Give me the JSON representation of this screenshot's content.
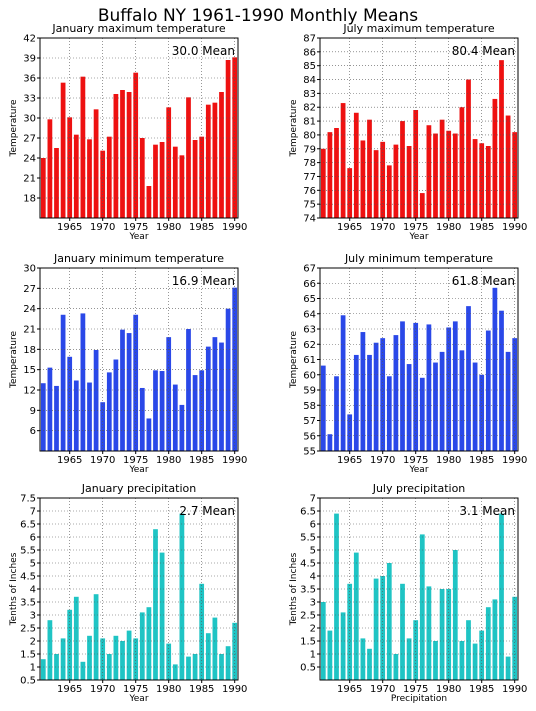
{
  "title": "Buffalo NY  1961-1990 Monthly Means",
  "colors": {
    "red": "#ee1111",
    "blue": "#2a48e8",
    "cyan": "#1fc4c4",
    "grid": "#555555"
  },
  "chart_data": [
    {
      "type": "bar",
      "title": "January maximum temperature",
      "mean_label": "30.0 Mean",
      "xlabel": "Year",
      "ylabel": "Temperature",
      "color": "red",
      "x": [
        1961,
        1962,
        1963,
        1964,
        1965,
        1966,
        1967,
        1968,
        1969,
        1970,
        1971,
        1972,
        1973,
        1974,
        1975,
        1976,
        1977,
        1978,
        1979,
        1980,
        1981,
        1982,
        1983,
        1984,
        1985,
        1986,
        1987,
        1988,
        1989,
        1990
      ],
      "values": [
        24.0,
        29.8,
        25.5,
        35.3,
        30.1,
        27.5,
        36.2,
        26.8,
        31.3,
        25.1,
        27.2,
        33.6,
        34.2,
        33.9,
        36.8,
        27.0,
        19.8,
        26.0,
        26.4,
        31.6,
        25.7,
        24.4,
        33.1,
        26.7,
        27.2,
        32.0,
        32.3,
        33.9,
        38.7,
        39.1
      ],
      "ylim": [
        15,
        42
      ],
      "yticks": [
        18,
        21,
        24,
        27,
        30,
        33,
        36,
        39,
        42
      ],
      "xticks": [
        1965,
        1970,
        1975,
        1980,
        1985,
        1990
      ]
    },
    {
      "type": "bar",
      "title": "July maximum temperature",
      "mean_label": "80.4 Mean",
      "xlabel": "Year",
      "ylabel": "Temperature",
      "color": "red",
      "x": [
        1961,
        1962,
        1963,
        1964,
        1965,
        1966,
        1967,
        1968,
        1969,
        1970,
        1971,
        1972,
        1973,
        1974,
        1975,
        1976,
        1977,
        1978,
        1979,
        1980,
        1981,
        1982,
        1983,
        1984,
        1985,
        1986,
        1987,
        1988,
        1989,
        1990
      ],
      "values": [
        79.0,
        80.2,
        80.5,
        82.3,
        77.6,
        81.6,
        79.6,
        81.1,
        78.9,
        79.5,
        77.8,
        79.3,
        81.0,
        79.2,
        81.8,
        75.8,
        80.7,
        80.1,
        81.1,
        80.3,
        80.1,
        82.0,
        84.0,
        79.7,
        79.4,
        79.2,
        82.6,
        85.4,
        81.4,
        80.2
      ],
      "ylim": [
        74,
        87
      ],
      "yticks": [
        74,
        75,
        76,
        77,
        78,
        79,
        80,
        81,
        82,
        83,
        84,
        85,
        86,
        87
      ],
      "xticks": [
        1965,
        1970,
        1975,
        1980,
        1985,
        1990
      ]
    },
    {
      "type": "bar",
      "title": "January minimum temperature",
      "mean_label": "16.9 Mean",
      "xlabel": "Year",
      "ylabel": "Temperature",
      "color": "blue",
      "x": [
        1961,
        1962,
        1963,
        1964,
        1965,
        1966,
        1967,
        1968,
        1969,
        1970,
        1971,
        1972,
        1973,
        1974,
        1975,
        1976,
        1977,
        1978,
        1979,
        1980,
        1981,
        1982,
        1983,
        1984,
        1985,
        1986,
        1987,
        1988,
        1989,
        1990
      ],
      "values": [
        13.0,
        15.3,
        12.6,
        23.1,
        16.9,
        13.4,
        23.3,
        13.1,
        17.9,
        10.2,
        14.6,
        16.5,
        20.9,
        20.4,
        23.1,
        12.3,
        7.8,
        14.9,
        14.8,
        19.8,
        12.8,
        9.8,
        21.0,
        14.2,
        14.9,
        18.4,
        19.8,
        19.0,
        24.0,
        27.1
      ],
      "ylim": [
        3,
        30
      ],
      "yticks": [
        6,
        9,
        12,
        15,
        18,
        21,
        24,
        27,
        30
      ],
      "xticks": [
        1965,
        1970,
        1975,
        1980,
        1985,
        1990
      ]
    },
    {
      "type": "bar",
      "title": "July minimum temperature",
      "mean_label": "61.8 Mean",
      "xlabel": "Year",
      "ylabel": "Temperature",
      "color": "blue",
      "x": [
        1961,
        1962,
        1963,
        1964,
        1965,
        1966,
        1967,
        1968,
        1969,
        1970,
        1971,
        1972,
        1973,
        1974,
        1975,
        1976,
        1977,
        1978,
        1979,
        1980,
        1981,
        1982,
        1983,
        1984,
        1985,
        1986,
        1987,
        1988,
        1989,
        1990
      ],
      "values": [
        60.6,
        56.1,
        59.9,
        63.9,
        57.4,
        61.3,
        62.8,
        61.3,
        62.1,
        62.4,
        59.9,
        62.6,
        63.5,
        60.7,
        63.4,
        59.8,
        63.3,
        60.8,
        61.5,
        63.1,
        63.5,
        61.6,
        64.5,
        60.8,
        60.0,
        62.9,
        65.7,
        64.2,
        61.5,
        62.4
      ],
      "ylim": [
        55,
        67
      ],
      "yticks": [
        55,
        56,
        57,
        58,
        59,
        60,
        61,
        62,
        63,
        64,
        65,
        66,
        67
      ],
      "xticks": [
        1965,
        1970,
        1975,
        1980,
        1985,
        1990
      ]
    },
    {
      "type": "bar",
      "title": "January precipitation",
      "mean_label": "2.7 Mean",
      "xlabel": "Year",
      "ylabel": "Tenths of Inches",
      "color": "cyan",
      "x": [
        1961,
        1962,
        1963,
        1964,
        1965,
        1966,
        1967,
        1968,
        1969,
        1970,
        1971,
        1972,
        1973,
        1974,
        1975,
        1976,
        1977,
        1978,
        1979,
        1980,
        1981,
        1982,
        1983,
        1984,
        1985,
        1986,
        1987,
        1988,
        1989,
        1990
      ],
      "values": [
        1.3,
        2.8,
        1.5,
        2.1,
        3.2,
        3.7,
        1.2,
        2.2,
        3.8,
        2.1,
        1.5,
        2.2,
        2.0,
        2.4,
        2.1,
        3.1,
        3.3,
        6.3,
        5.4,
        1.9,
        1.1,
        6.9,
        1.4,
        1.5,
        4.2,
        2.3,
        2.9,
        1.5,
        1.8,
        2.7
      ],
      "ylim": [
        0.5,
        7.5
      ],
      "yticks": [
        0.5,
        1,
        1.5,
        2,
        2.5,
        3,
        3.5,
        4,
        4.5,
        5,
        5.5,
        6,
        6.5,
        7,
        7.5
      ],
      "xticks": [
        1965,
        1970,
        1975,
        1980,
        1985,
        1990
      ]
    },
    {
      "type": "bar",
      "title": "July precipitation",
      "mean_label": "3.1 Mean",
      "xlabel": "Precipitation",
      "ylabel": "Tenths of Inches",
      "color": "cyan",
      "x": [
        1961,
        1962,
        1963,
        1964,
        1965,
        1966,
        1967,
        1968,
        1969,
        1970,
        1971,
        1972,
        1973,
        1974,
        1975,
        1976,
        1977,
        1978,
        1979,
        1980,
        1981,
        1982,
        1983,
        1984,
        1985,
        1986,
        1987,
        1988,
        1989,
        1990
      ],
      "values": [
        3.0,
        1.9,
        6.4,
        2.6,
        3.7,
        4.9,
        1.6,
        1.2,
        3.9,
        4.0,
        4.5,
        1.0,
        3.7,
        1.6,
        2.3,
        5.6,
        3.6,
        1.5,
        3.5,
        3.5,
        5.0,
        1.5,
        2.3,
        1.4,
        1.9,
        2.8,
        3.1,
        6.4,
        0.9,
        3.2
      ],
      "ylim": [
        0,
        7
      ],
      "yticks": [
        0.5,
        1,
        1.5,
        2,
        2.5,
        3,
        3.5,
        4,
        4.5,
        5,
        5.5,
        6,
        6.5,
        7
      ],
      "xticks": [
        1965,
        1970,
        1975,
        1980,
        1985,
        1990
      ]
    }
  ]
}
